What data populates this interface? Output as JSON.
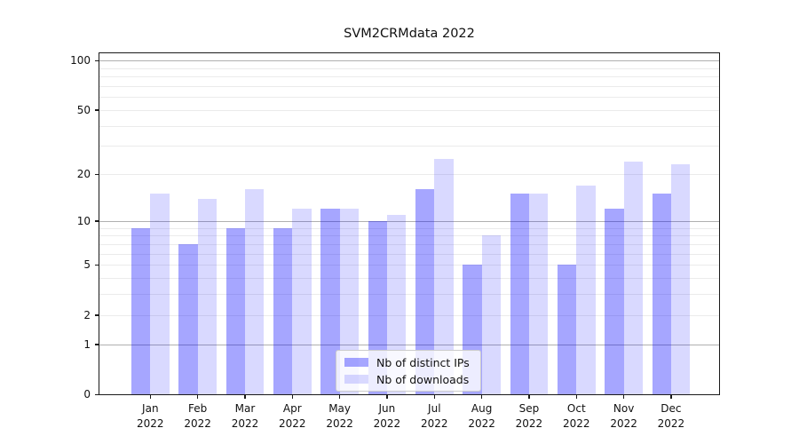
{
  "title": "SVM2CRMdata 2022",
  "chart_data": {
    "type": "bar",
    "title": "SVM2CRMdata 2022",
    "categories": [
      "Jan",
      "Feb",
      "Mar",
      "Apr",
      "May",
      "Jun",
      "Jul",
      "Aug",
      "Sep",
      "Oct",
      "Nov",
      "Dec"
    ],
    "category_sublabel": "2022",
    "series": [
      {
        "name": "Nb of distinct IPs",
        "fill": "rgba(0,0,255,0.35)",
        "hex_on_white": "#a6a6ff",
        "values": [
          9,
          7,
          9,
          9,
          12,
          10,
          16,
          5,
          15,
          5,
          12,
          15
        ]
      },
      {
        "name": "Nb of downloads",
        "fill": "rgba(0,0,255,0.15)",
        "hex_on_white": "#d9d9ff",
        "values": [
          15,
          14,
          16,
          12,
          12,
          11,
          25,
          8,
          15,
          17,
          24,
          23
        ]
      }
    ],
    "xlabel": "",
    "ylabel": "",
    "yscale": "log10(value+1)",
    "ylim": [
      0,
      110
    ],
    "yticks": [
      0,
      1,
      2,
      5,
      10,
      20,
      50,
      100
    ],
    "major_gridlines": [
      1,
      10,
      100
    ],
    "minor_gridlines": [
      2,
      3,
      4,
      5,
      6,
      7,
      8,
      9,
      20,
      30,
      40,
      50,
      60,
      70,
      80,
      90
    ],
    "grid": true,
    "legend": {
      "position": "lower center",
      "entries": [
        "Nb of distinct IPs",
        "Nb of downloads"
      ]
    }
  },
  "colors": {
    "grid_major": "#b0b0b0",
    "grid_minor": "#ebebeb",
    "axis": "#1a1a1a",
    "legend_border": "#cccccc"
  }
}
